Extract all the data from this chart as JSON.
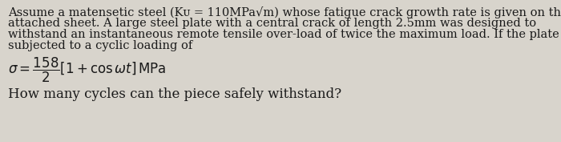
{
  "bg_color": "#d8d4cc",
  "text_color": "#1a1a1a",
  "fontsize_body": 10.5,
  "fontsize_formula": 12.0,
  "fontsize_question": 12.0,
  "line1": "Assume a matensetic steel (Kᴜ = 110MPa√m) whose fatigue crack growth rate is given on the",
  "line2": "attached sheet. A large steel plate with a central crack of length 2.5mm was designed to",
  "line3": "withstand an instantaneous remote tensile over-load of twice the maximum load. If the plate is",
  "line4": "subjected to a cyclic loading of",
  "question": "How many cycles can the piece safely withstand?"
}
